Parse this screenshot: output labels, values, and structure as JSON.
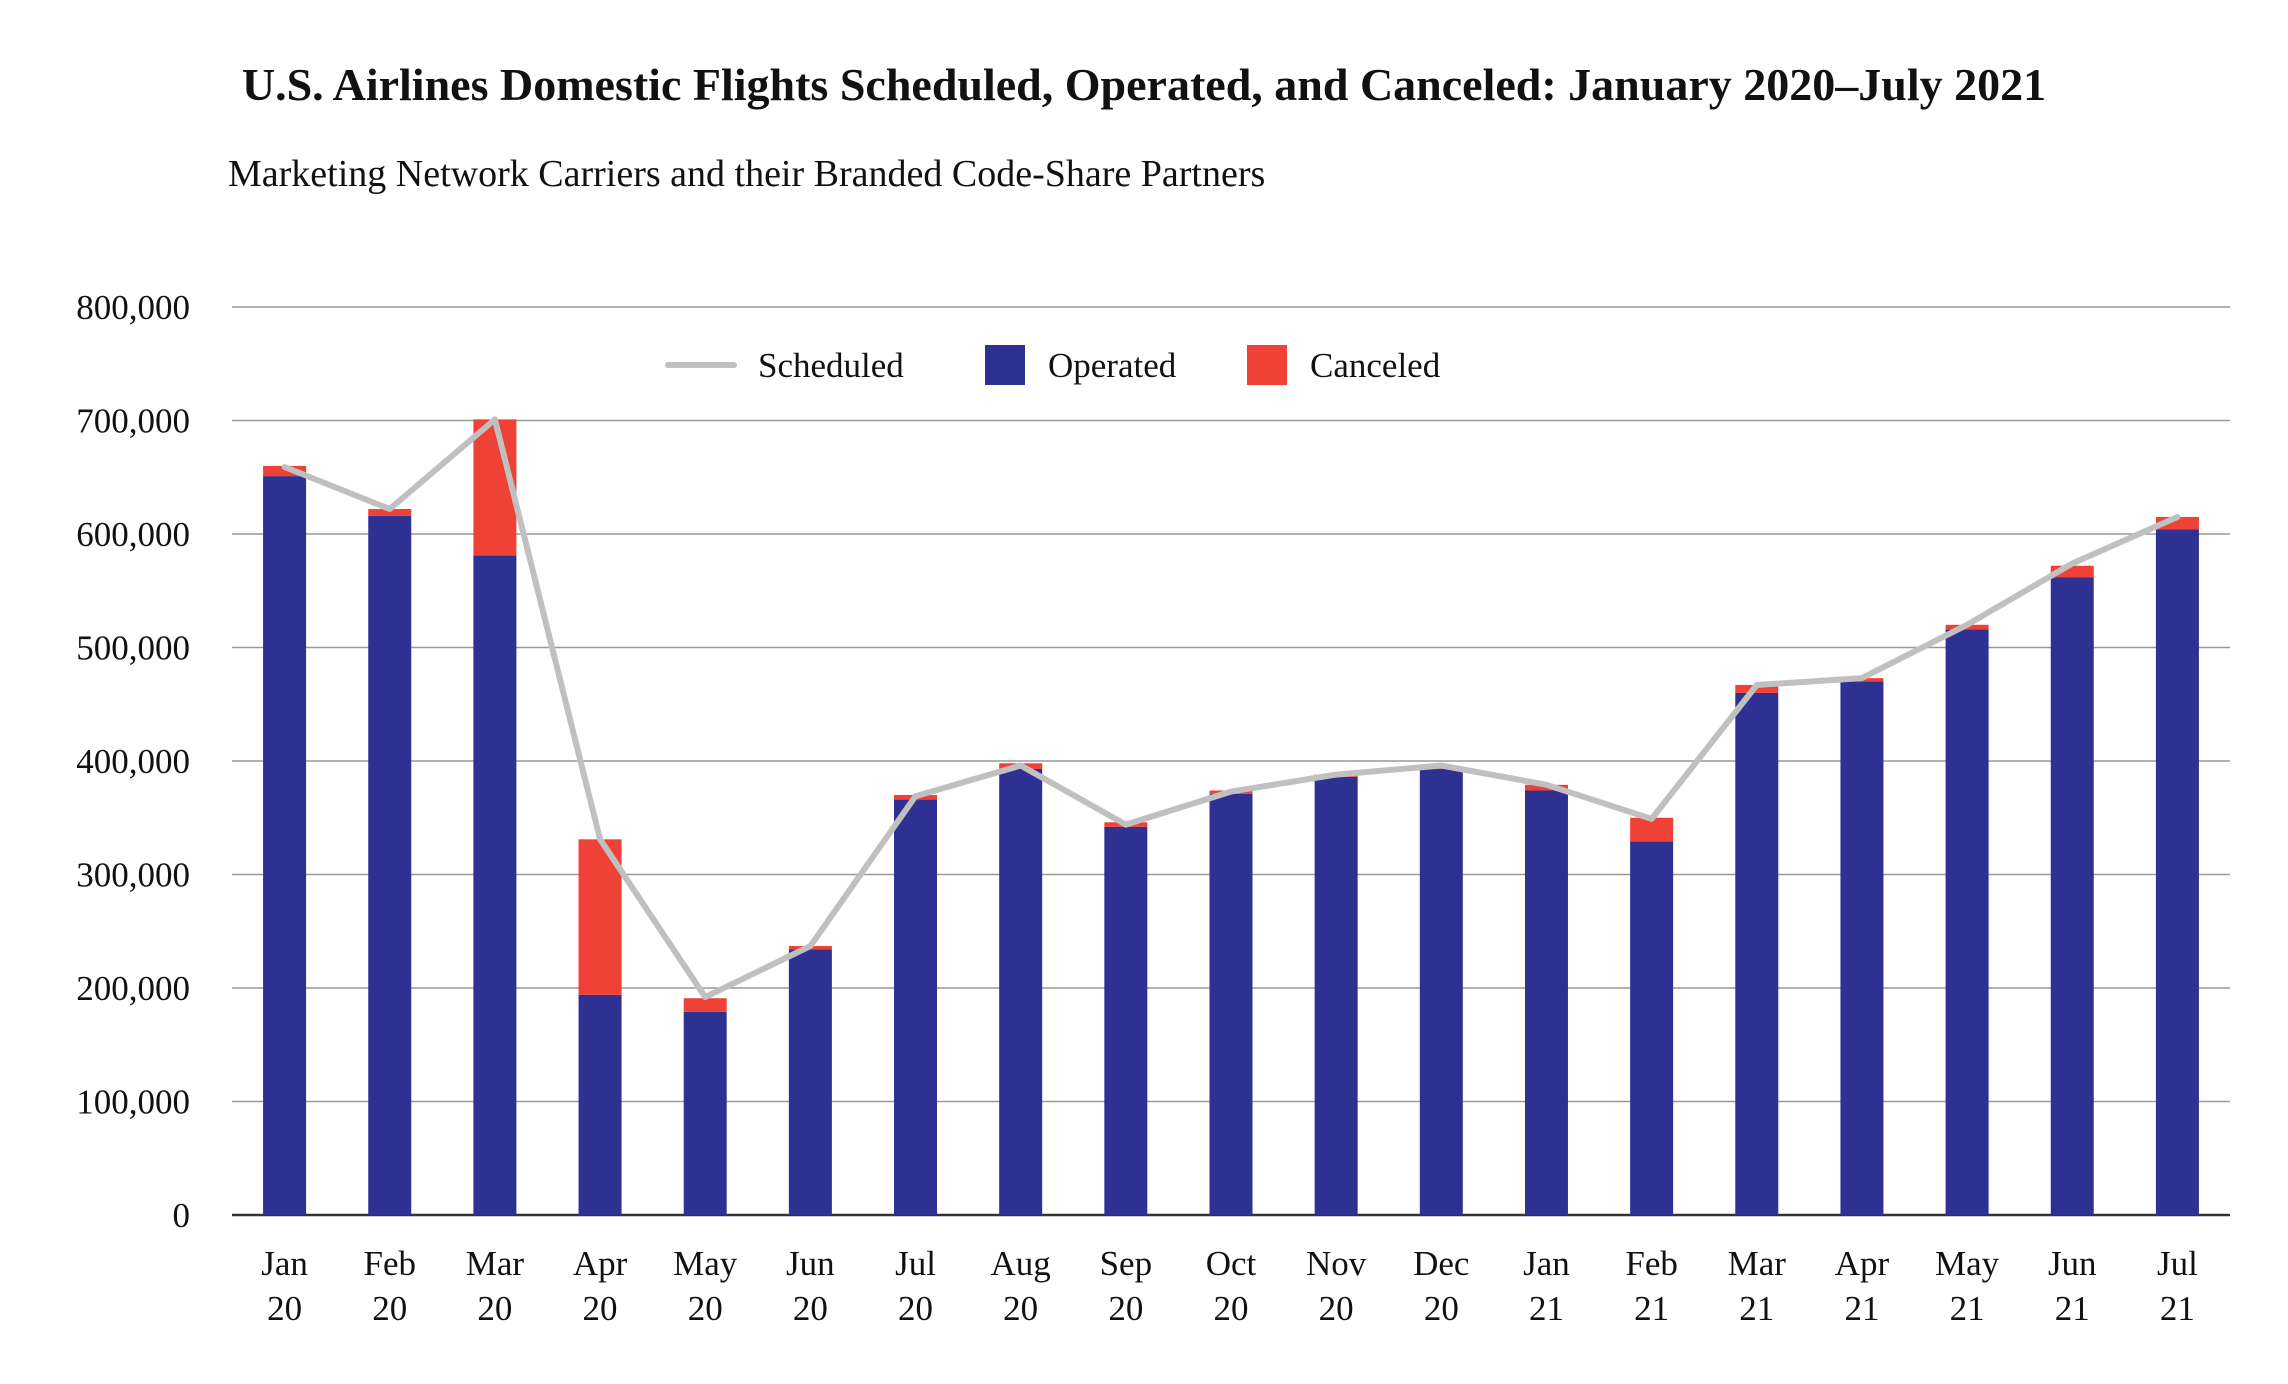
{
  "chart_data": {
    "type": "bar",
    "title": "U.S. Airlines Domestic Flights Scheduled, Operated, and Canceled: January 2020–July 2021",
    "subtitle": "Marketing Network Carriers and their Branded Code-Share Partners",
    "xlabel": "",
    "ylabel": "",
    "ylim": [
      0,
      800000
    ],
    "yticks": [
      0,
      100000,
      200000,
      300000,
      400000,
      500000,
      600000,
      700000,
      800000
    ],
    "ytick_labels": [
      "0",
      "100,000",
      "200,000",
      "300,000",
      "400,000",
      "500,000",
      "600,000",
      "700,000",
      "800,000"
    ],
    "grid": true,
    "stacked": true,
    "legend_position": "top-center",
    "categories": [
      [
        "Jan",
        "20"
      ],
      [
        "Feb",
        "20"
      ],
      [
        "Mar",
        "20"
      ],
      [
        "Apr",
        "20"
      ],
      [
        "May",
        "20"
      ],
      [
        "Jun",
        "20"
      ],
      [
        "Jul",
        "20"
      ],
      [
        "Aug",
        "20"
      ],
      [
        "Sep",
        "20"
      ],
      [
        "Oct",
        "20"
      ],
      [
        "Nov",
        "20"
      ],
      [
        "Dec",
        "20"
      ],
      [
        "Jan",
        "21"
      ],
      [
        "Feb",
        "21"
      ],
      [
        "Mar",
        "21"
      ],
      [
        "Apr",
        "21"
      ],
      [
        "May",
        "21"
      ],
      [
        "Jun",
        "21"
      ],
      [
        "Jul",
        "21"
      ]
    ],
    "series": [
      {
        "name": "Operated",
        "type": "bar",
        "color": "#2e3192",
        "values": [
          651000,
          616000,
          581000,
          194000,
          179000,
          234000,
          366000,
          393000,
          342000,
          371000,
          386000,
          393000,
          374000,
          329000,
          460000,
          470000,
          516000,
          562000,
          604000
        ]
      },
      {
        "name": "Canceled",
        "type": "bar",
        "color": "#ef4136",
        "values": [
          9000,
          6000,
          120000,
          137000,
          12000,
          3000,
          4000,
          5000,
          4000,
          3000,
          2000,
          2000,
          5000,
          21000,
          7000,
          3000,
          4000,
          10000,
          11000
        ]
      },
      {
        "name": "Scheduled",
        "type": "line",
        "color": "#c0c0c0",
        "values": [
          659000,
          622000,
          701000,
          331000,
          192000,
          237000,
          369000,
          396000,
          344000,
          373000,
          388000,
          396000,
          379000,
          349000,
          467000,
          473000,
          520000,
          574000,
          615000
        ]
      }
    ],
    "legend": [
      {
        "label": "Scheduled",
        "kind": "line",
        "color": "#c0c0c0"
      },
      {
        "label": "Operated",
        "kind": "box",
        "color": "#2e3192"
      },
      {
        "label": "Canceled",
        "kind": "box",
        "color": "#ef4136"
      }
    ],
    "colors": {
      "grid": "#999999",
      "axis": "#333333",
      "text": "#111111"
    }
  }
}
